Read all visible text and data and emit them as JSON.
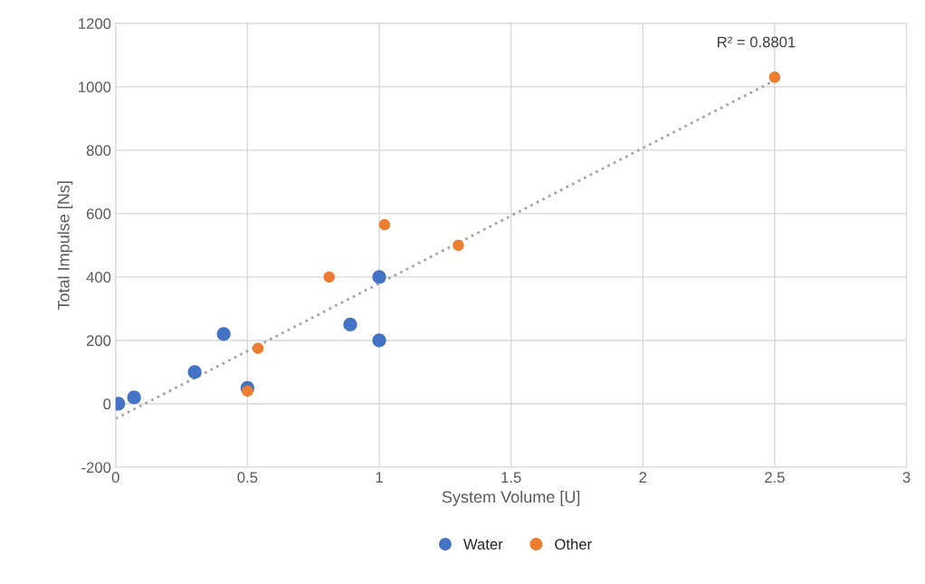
{
  "chart_data": {
    "type": "scatter",
    "xlabel": "System Volume [U]",
    "ylabel": "Total Impulse [Ns]",
    "xlim": [
      0,
      3
    ],
    "xticks": [
      0,
      0.5,
      1,
      1.5,
      2,
      2.5,
      3
    ],
    "ylim": [
      -200,
      1200
    ],
    "yticks": [
      -200,
      0,
      200,
      400,
      600,
      800,
      1000,
      1200
    ],
    "grid": true,
    "legend": "bottom",
    "marker": "circle",
    "series": [
      {
        "name": "Water",
        "color": "#4472c4",
        "x": [
          0.01,
          0.07,
          0.3,
          0.41,
          0.5,
          0.89,
          1.0,
          1.0
        ],
        "values": [
          0,
          20,
          100,
          220,
          50,
          250,
          400,
          200
        ]
      },
      {
        "name": "Other",
        "color": "#ed7d31",
        "x": [
          0.5,
          0.54,
          0.81,
          1.02,
          1.3,
          2.5
        ],
        "values": [
          40,
          175,
          400,
          565,
          500,
          1030
        ]
      },
      {
        "type": "line",
        "color": "#a5a5a5",
        "line_style": "dotted",
        "marker": "none",
        "x": [
          0,
          2.5
        ],
        "values": [
          -47,
          1020
        ]
      }
    ],
    "annotations": [
      "R² = 0.8801"
    ]
  }
}
